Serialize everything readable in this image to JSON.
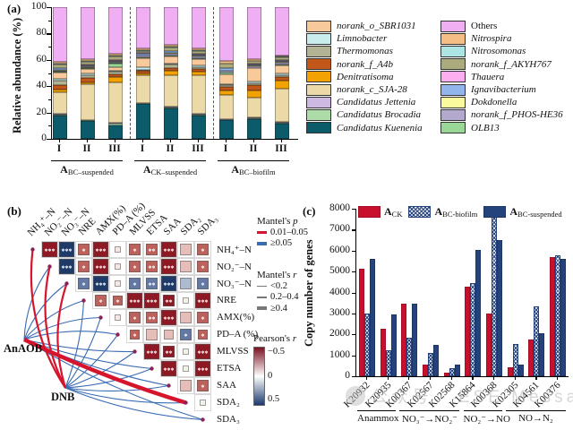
{
  "watermark": {
    "text": "公众号 · ESE Message"
  },
  "chart_data": [
    {
      "id": "a",
      "type": "bar",
      "stacked": true,
      "panel_label": "(a)",
      "ylabel": "Relative abundance (%)",
      "ylim": [
        0,
        100
      ],
      "yticks": [
        0,
        20,
        40,
        60,
        80,
        100
      ],
      "series_keys": [
        "kuenenia",
        "brocadia",
        "jettenia",
        "sja28",
        "denitratisoma",
        "a4b",
        "thermomonas",
        "limnobacter",
        "sbr1031",
        "olb13",
        "phoshe36",
        "dokdonella",
        "ignavibacterium",
        "thauera",
        "akyh767",
        "nitrosomonas",
        "nitrospira",
        "others"
      ],
      "palette": {
        "sbr1031": "#F7C99B",
        "limnobacter": "#C9ECEC",
        "thermomonas": "#B3B394",
        "a4b": "#C2571A",
        "denitratisoma": "#F2A202",
        "sja28": "#EBD9A8",
        "jettenia": "#CDB9E2",
        "brocadia": "#AEDCA8",
        "kuenenia": "#0B5B6B",
        "others": "#F0AFF2",
        "nitrospira": "#F5BE85",
        "nitrosomonas": "#ADE5E5",
        "akyh767": "#ABAB7E",
        "thauera": "#FCAEF0",
        "ignavibacterium": "#92B5EC",
        "dokdonella": "#FBFB9E",
        "phoshe36": "#B3A8CE",
        "olb13": "#98D796"
      },
      "groups": [
        {
          "label_base": "A",
          "label_sub": "BC–suspended",
          "categories": [
            "I",
            "II",
            "III"
          ],
          "values": [
            [
              18,
              0.5,
              0.5,
              16.5,
              2,
              3.5,
              3,
              1.5,
              5,
              0.5,
              1,
              0.5,
              1,
              0.5,
              2.5,
              0.5,
              1.5,
              41.5
            ],
            [
              13.5,
              0.5,
              0.5,
              27,
              1.5,
              3,
              2.5,
              1,
              3.5,
              0.5,
              1,
              0.5,
              1,
              0.5,
              2,
              0.5,
              1.5,
              39.5
            ],
            [
              10.5,
              1,
              0.5,
              31,
              4,
              2,
              2,
              1,
              2.5,
              2.5,
              1,
              0.5,
              1,
              0.5,
              2.5,
              0.5,
              1.5,
              35.5
            ]
          ]
        },
        {
          "label_base": "A",
          "label_sub": "CK–suspended",
          "categories": [
            "I",
            "II",
            "III"
          ],
          "values": [
            [
              26.5,
              0.5,
              0.5,
              20.5,
              2,
              1.5,
              1,
              2,
              6.5,
              1,
              1,
              0.5,
              1,
              0.5,
              2,
              0.5,
              1,
              31.5
            ],
            [
              23,
              1,
              0.5,
              23.5,
              4,
              2,
              2.5,
              1,
              5,
              1,
              1.5,
              0.5,
              1,
              0.5,
              2.5,
              0.5,
              1.5,
              28.5
            ],
            [
              17.5,
              1,
              0.5,
              29,
              3,
              2,
              1.5,
              1,
              5,
              1,
              1,
              0.5,
              1,
              0.5,
              2.5,
              0.5,
              1,
              31.5
            ]
          ]
        },
        {
          "label_base": "A",
          "label_sub": "BC–biofilm",
          "categories": [
            "I",
            "II",
            "III"
          ],
          "values": [
            [
              14,
              0.5,
              0.5,
              18.5,
              3,
              3,
              1,
              1,
              7.5,
              1.5,
              1,
              0.5,
              1.5,
              0.5,
              3,
              0.5,
              2,
              40.5
            ],
            [
              15,
              0.5,
              0.5,
              15,
              5.5,
              4.5,
              1.5,
              1,
              10,
              0.5,
              1,
              0.5,
              1,
              0.5,
              2,
              0.5,
              1,
              39.5
            ],
            [
              11.5,
              1,
              0.5,
              25,
              6,
              3,
              1.5,
              1,
              6.5,
              0.5,
              1.5,
              0.5,
              1,
              0.5,
              2,
              0.5,
              1,
              36.5
            ]
          ]
        }
      ],
      "legend_columns": [
        [
          {
            "key": "sbr1031",
            "label": "norank_o_SBR1031",
            "italic": true
          },
          {
            "key": "limnobacter",
            "label": "Limnobacter",
            "italic": true
          },
          {
            "key": "thermomonas",
            "label": "Thermomonas",
            "italic": true
          },
          {
            "key": "a4b",
            "label": "norank_f_A4b",
            "italic": true
          },
          {
            "key": "denitratisoma",
            "label": "Denitratisoma",
            "italic": true
          },
          {
            "key": "sja28",
            "label": "norank_c_SJA-28",
            "italic": true
          },
          {
            "key": "jettenia",
            "label": "Candidatus Jettenia",
            "italic": true
          },
          {
            "key": "brocadia",
            "label": "Candidatus Brocadia",
            "italic": true
          },
          {
            "key": "kuenenia",
            "label": "Candidatus Kuenenia",
            "italic": true
          }
        ],
        [
          {
            "key": "others",
            "label": "Others",
            "italic": false
          },
          {
            "key": "nitrospira",
            "label": "Nitrospira",
            "italic": true
          },
          {
            "key": "nitrosomonas",
            "label": "Nitrosomonas",
            "italic": true
          },
          {
            "key": "akyh767",
            "label": "norank_f_AKYH767",
            "italic": true
          },
          {
            "key": "thauera",
            "label": "Thauera",
            "italic": true
          },
          {
            "key": "ignavibacterium",
            "label": "Ignavibacterium",
            "italic": true
          },
          {
            "key": "dokdonella",
            "label": "Dokdonella",
            "italic": true
          },
          {
            "key": "phoshe36",
            "label": "norank_f_PHOS-HE36",
            "italic": true
          },
          {
            "key": "olb13",
            "label": "OLB13",
            "italic": true
          }
        ]
      ]
    },
    {
      "id": "b",
      "type": "heatmap",
      "panel_label": "(b)",
      "variables": [
        "NH₄⁺–N",
        "NO₂⁻–N",
        "NO₃⁻–N",
        "NRE",
        "AMX(%)",
        "PD–A (%)",
        "MLVSS",
        "ETSA",
        "SAA",
        "SDA₂",
        "SDA₃"
      ],
      "cell_colors": {
        "dr": "#8E1823",
        "mr": "#BC615C",
        "lr": "#E5BDB9",
        "vlr": "#F6E6E4",
        "db": "#1E3A68",
        "mb": "#6478A4",
        "lb": "#AFBACF",
        "w": "#F4F1EC"
      },
      "cell_sizes": {
        "lg": 17,
        "md": 13,
        "sm2": 11,
        "sm": 7
      },
      "cells": [
        "1|2|dr|lg|***",
        "1|3|db|lg|***",
        "1|4|mr|md|*",
        "1|5|dr|lg|***",
        "1|6|vlr|sm|",
        "1|7|mr|md|*",
        "1|8|mr|md|**",
        "1|9|dr|lg|***",
        "1|10|lr|md|",
        "1|11|mr|md|*",
        "2|3|db|lg|***",
        "2|4|mr|md|*",
        "2|5|dr|lg|***",
        "2|6|vlr|sm|",
        "2|7|mr|md|*",
        "2|8|mr|md|**",
        "2|9|dr|lg|***",
        "2|10|lr|md|",
        "2|11|mr|md|*",
        "3|4|mb|md|*",
        "3|5|db|lg|***",
        "3|6|vlr|sm|",
        "3|7|mb|md|*",
        "3|8|mb|md|**",
        "3|9|db|lg|***",
        "3|10|lb|md|",
        "3|11|mb|md|*",
        "4|5|mr|md|*",
        "4|6|mr|sm2|*",
        "4|7|dr|lg|***",
        "4|8|dr|lg|***",
        "4|9|dr|md|**",
        "4|10|w|sm|",
        "4|11|dr|lg|***",
        "5|6|vlr|sm|",
        "5|7|mr|md|*",
        "5|8|mr|md|**",
        "5|9|dr|lg|***",
        "5|10|lr|md|",
        "5|11|mr|md|*",
        "6|7|mr|sm2|*",
        "6|8|lr|md|",
        "6|9|lr|sm2|",
        "6|10|mb|md|*",
        "6|11|mr|sm2|*",
        "7|8|dr|lg|***",
        "7|9|dr|md|**",
        "7|10|w|sm|",
        "7|11|dr|lg|***",
        "8|9|dr|lg|***",
        "8|10|w|sm|",
        "8|11|dr|lg|***",
        "9|10|lr|md|",
        "9|11|mr|md|*",
        "10|11|w|sm|"
      ],
      "nodes": [
        {
          "id": "AnAOB",
          "label": "AnAOB"
        },
        {
          "id": "DNB",
          "label": "DNB"
        }
      ],
      "edge_colors": {
        "red": "#D6152C",
        "blue": "#3A6BB5"
      },
      "edges": [
        {
          "from": "DNB",
          "to": 1,
          "color": "red",
          "width": 2.2,
          "bend": 0.18
        },
        {
          "from": "DNB",
          "to": 2,
          "color": "red",
          "width": 2.2,
          "bend": 0.18
        },
        {
          "from": "DNB",
          "to": 3,
          "color": "red",
          "width": 2.2,
          "bend": 0.16
        },
        {
          "from": "AnAOB",
          "to": 10,
          "color": "red",
          "width": 4.5,
          "bend": -0.04
        },
        {
          "from": "AnAOB",
          "to": 2,
          "color": "blue",
          "width": 1.1,
          "bend": 0.15
        },
        {
          "from": "AnAOB",
          "to": 3,
          "color": "blue",
          "width": 1.1,
          "bend": 0.15
        },
        {
          "from": "AnAOB",
          "to": 4,
          "color": "blue",
          "width": 1.1,
          "bend": 0.14
        },
        {
          "from": "AnAOB",
          "to": 5,
          "color": "blue",
          "width": 1.1,
          "bend": 0.13
        },
        {
          "from": "AnAOB",
          "to": 6,
          "color": "blue",
          "width": 1.1,
          "bend": 0.12
        },
        {
          "from": "AnAOB",
          "to": 7,
          "color": "blue",
          "width": 1.1,
          "bend": -0.06
        },
        {
          "from": "AnAOB",
          "to": 8,
          "color": "blue",
          "width": 1.1,
          "bend": -0.06
        },
        {
          "from": "AnAOB",
          "to": 9,
          "color": "blue",
          "width": 1.1,
          "bend": -0.06
        },
        {
          "from": "AnAOB",
          "to": 11,
          "color": "blue",
          "width": 1.1,
          "bend": -0.06
        },
        {
          "from": "DNB",
          "to": 4,
          "color": "blue",
          "width": 1.1,
          "bend": -0.08
        },
        {
          "from": "DNB",
          "to": 5,
          "color": "blue",
          "width": 1.1,
          "bend": -0.08
        },
        {
          "from": "DNB",
          "to": 6,
          "color": "blue",
          "width": 1.1,
          "bend": -0.08
        },
        {
          "from": "DNB",
          "to": 7,
          "color": "blue",
          "width": 1.1,
          "bend": -0.08
        },
        {
          "from": "DNB",
          "to": 8,
          "color": "blue",
          "width": 1.1,
          "bend": -0.08
        },
        {
          "from": "DNB",
          "to": 9,
          "color": "blue",
          "width": 1.1,
          "bend": -0.08
        },
        {
          "from": "DNB",
          "to": 10,
          "color": "blue",
          "width": 1.1,
          "bend": -0.08
        },
        {
          "from": "DNB",
          "to": 11,
          "color": "blue",
          "width": 1.1,
          "bend": -0.08
        }
      ],
      "legend": {
        "mantel_p": {
          "title_base": "Mantel's ",
          "title_ital": "p",
          "items": [
            {
              "label": "0.01–0.05",
              "color": "#D6152C"
            },
            {
              "label": "≥0.05",
              "color": "#3A6BB5"
            }
          ]
        },
        "mantel_r": {
          "title_base": "Mantel's ",
          "title_ital": "r",
          "items": [
            {
              "label": "<0.2",
              "w": 1
            },
            {
              "label": "0.2–0.4",
              "w": 2.5
            },
            {
              "label": "≥0.4",
              "w": 4
            }
          ]
        },
        "pearson": {
          "title_base": "Pearson's ",
          "title_ital": "r",
          "top_label": "−0.5",
          "mid_label": "0",
          "bottom_label": "0.5",
          "top_color": "#7A1322",
          "mid_color": "#FFFFFF",
          "bottom_color": "#1D3A6D"
        }
      }
    },
    {
      "id": "c",
      "type": "bar",
      "panel_label": "(c)",
      "ylabel": "Copy number of genes",
      "ylim": [
        0,
        8000
      ],
      "yticks": [
        0,
        1000,
        2000,
        3000,
        4000,
        5000,
        6000,
        7000,
        8000
      ],
      "categories": [
        "K20932",
        "K20935",
        "K00367",
        "K02567",
        "K02568",
        "K15864",
        "K00368",
        "K02305",
        "K04561",
        "K00376"
      ],
      "series": [
        {
          "label_base": "A",
          "label_sub": "CK",
          "style": "red",
          "values": [
            5150,
            2280,
            3450,
            540,
            170,
            4300,
            2980,
            420,
            1750,
            5700
          ]
        },
        {
          "label_base": "A",
          "label_sub": "BC-biofilm",
          "style": "hatch",
          "values": [
            3000,
            1250,
            1850,
            1120,
            400,
            4450,
            7650,
            1550,
            3350,
            5780
          ]
        },
        {
          "label_base": "A",
          "label_sub": "BC-suspended",
          "style": "navy",
          "values": [
            5620,
            2970,
            3480,
            1500,
            540,
            6050,
            6500,
            560,
            2050,
            5600
          ]
        }
      ],
      "group_spans": [
        {
          "label": "Anammox",
          "from": 0,
          "to": 1
        },
        {
          "label": "NO₃⁻→NO₂⁻",
          "from": 2,
          "to": 4
        },
        {
          "label": "NO₂⁻→NO",
          "from": 5,
          "to": 6
        },
        {
          "label": "NO→N₂",
          "from": 7,
          "to": 9
        }
      ],
      "colors": {
        "red": "#C8102E",
        "navy": "#24437C",
        "hatch_bg": "#E8EDF7",
        "red_border": "#7E0A1D",
        "navy_border": "#16294F"
      }
    }
  ]
}
